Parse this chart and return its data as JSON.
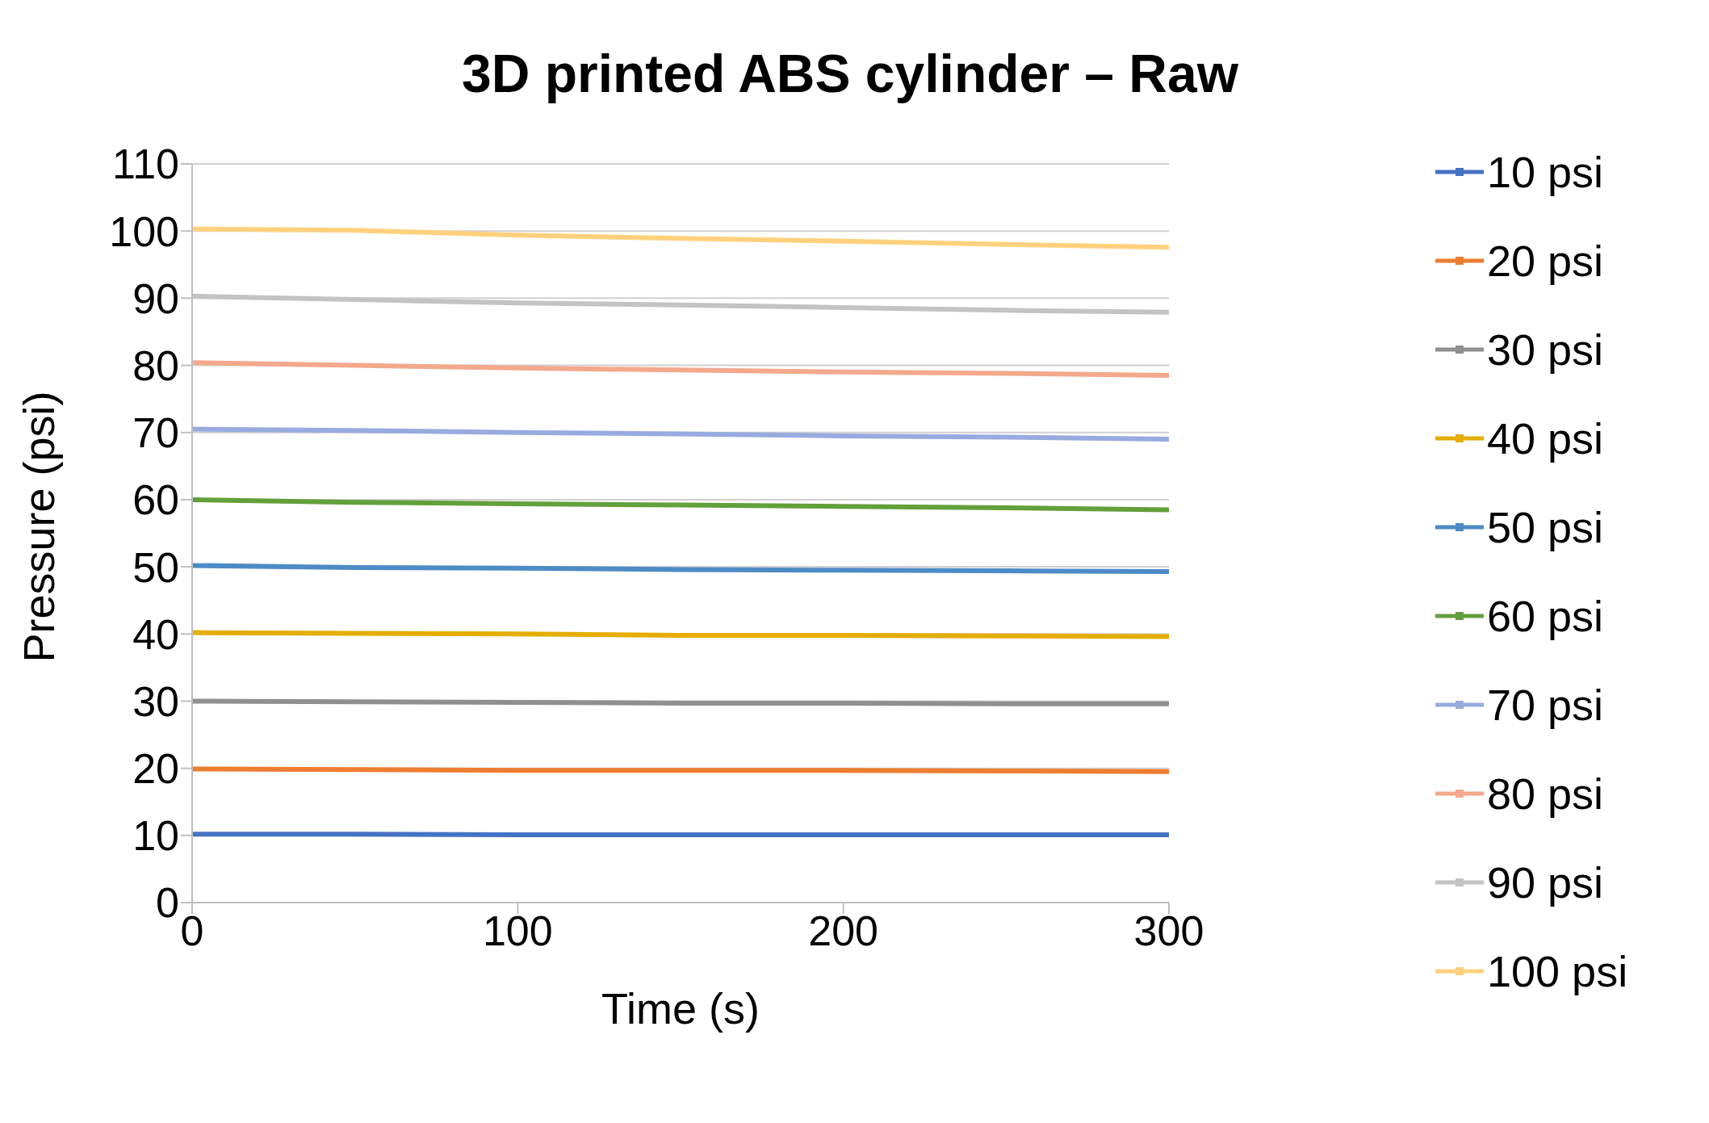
{
  "chart_data": {
    "type": "line",
    "title": "3D printed ABS cylinder – Raw",
    "xlabel": "Time (s)",
    "ylabel": "Pressure (psi)",
    "x": [
      0,
      50,
      100,
      150,
      200,
      250,
      300
    ],
    "xlim": [
      0,
      300
    ],
    "xticks": [
      0,
      100,
      200,
      300
    ],
    "ylim": [
      0,
      110
    ],
    "yticks": [
      0,
      10,
      20,
      30,
      40,
      50,
      60,
      70,
      80,
      90,
      100,
      110
    ],
    "grid": "y",
    "legend": "right",
    "marker": "none",
    "line_style": "solid",
    "series": [
      {
        "name": "10 psi",
        "color": "#4472c4",
        "values": [
          10.2,
          10.2,
          10.1,
          10.1,
          10.1,
          10.1,
          10.1
        ]
      },
      {
        "name": "20 psi",
        "color": "#ed7d31",
        "values": [
          19.9,
          19.8,
          19.7,
          19.7,
          19.7,
          19.6,
          19.5
        ]
      },
      {
        "name": "30 psi",
        "color": "#8f8f8f",
        "values": [
          30.0,
          29.9,
          29.8,
          29.7,
          29.7,
          29.6,
          29.6
        ]
      },
      {
        "name": "40 psi",
        "color": "#e5ad00",
        "values": [
          40.2,
          40.1,
          40.0,
          39.8,
          39.8,
          39.7,
          39.6
        ]
      },
      {
        "name": "50 psi",
        "color": "#4d8bc6",
        "values": [
          50.2,
          49.9,
          49.8,
          49.6,
          49.5,
          49.4,
          49.3
        ]
      },
      {
        "name": "60 psi",
        "color": "#62a03c",
        "values": [
          60.0,
          59.6,
          59.4,
          59.2,
          59.0,
          58.8,
          58.5
        ]
      },
      {
        "name": "70 psi",
        "color": "#98abdf",
        "values": [
          70.5,
          70.3,
          70.0,
          69.8,
          69.5,
          69.3,
          69.0
        ]
      },
      {
        "name": "80 psi",
        "color": "#f4a88c",
        "values": [
          80.4,
          80.0,
          79.6,
          79.3,
          79.0,
          78.8,
          78.5
        ]
      },
      {
        "name": "90 psi",
        "color": "#c3c3c3",
        "values": [
          90.3,
          89.8,
          89.3,
          89.0,
          88.6,
          88.2,
          87.9
        ]
      },
      {
        "name": "100 psi",
        "color": "#ffd17e",
        "values": [
          100.3,
          100.1,
          99.4,
          98.9,
          98.5,
          98.0,
          97.6
        ]
      }
    ]
  }
}
